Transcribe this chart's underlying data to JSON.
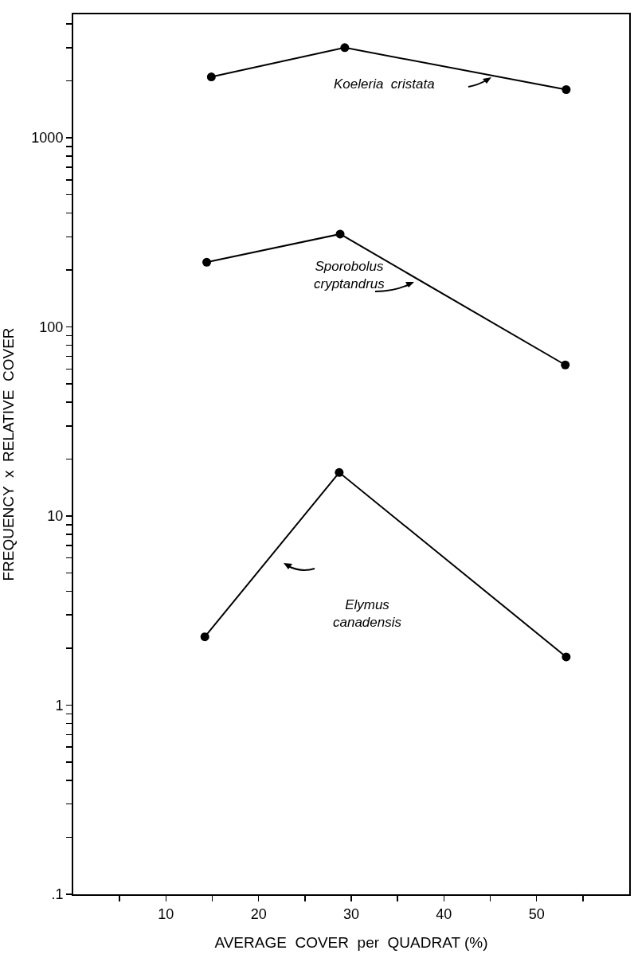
{
  "chart_data": {
    "type": "line",
    "xlabel": "AVERAGE  COVER  per  QUADRAT (%)",
    "ylabel": "FREQUENCY  x  RELATIVE  COVER",
    "log": "y",
    "grid": false,
    "marker": "circle",
    "line_style": "solid",
    "xlim": [
      0,
      60
    ],
    "xticks": [
      {
        "value": 5,
        "label": null
      },
      10,
      {
        "value": 15,
        "label": null
      },
      20,
      {
        "value": 25,
        "label": null
      },
      30,
      {
        "value": 35,
        "label": null
      },
      40,
      {
        "value": 45,
        "label": null
      },
      50,
      {
        "value": 55,
        "label": null
      }
    ],
    "ylim": [
      0.1,
      4500
    ],
    "yticks": [
      {
        "value": 0.1,
        "label": ".1"
      },
      {
        "value": 0.2,
        "label": null
      },
      {
        "value": 0.3,
        "label": null
      },
      {
        "value": 0.4,
        "label": null
      },
      {
        "value": 0.5,
        "label": null
      },
      {
        "value": 0.6,
        "label": null
      },
      {
        "value": 0.7,
        "label": null
      },
      {
        "value": 0.8,
        "label": null
      },
      {
        "value": 0.9,
        "label": null
      },
      1,
      {
        "value": 2,
        "label": null
      },
      {
        "value": 3,
        "label": null
      },
      {
        "value": 4,
        "label": null
      },
      {
        "value": 5,
        "label": null
      },
      {
        "value": 6,
        "label": null
      },
      {
        "value": 7,
        "label": null
      },
      {
        "value": 8,
        "label": null
      },
      {
        "value": 9,
        "label": null
      },
      10,
      {
        "value": 20,
        "label": null
      },
      {
        "value": 30,
        "label": null
      },
      {
        "value": 40,
        "label": null
      },
      {
        "value": 50,
        "label": null
      },
      {
        "value": 60,
        "label": null
      },
      {
        "value": 70,
        "label": null
      },
      {
        "value": 80,
        "label": null
      },
      {
        "value": 90,
        "label": null
      },
      100,
      {
        "value": 200,
        "label": null
      },
      {
        "value": 300,
        "label": null
      },
      {
        "value": 400,
        "label": null
      },
      {
        "value": 500,
        "label": null
      },
      {
        "value": 600,
        "label": null
      },
      {
        "value": 700,
        "label": null
      },
      {
        "value": 800,
        "label": null
      },
      {
        "value": 900,
        "label": null
      },
      1000,
      {
        "value": 2000,
        "label": null
      },
      {
        "value": 3000,
        "label": null
      },
      {
        "value": 4000,
        "label": null
      }
    ],
    "series": [
      {
        "color": "#000000",
        "x": [
          14.9,
          29.3,
          53.2
        ],
        "values": [
          2100,
          3000,
          1800
        ]
      },
      {
        "color": "#000000",
        "x": [
          14.4,
          28.8,
          53.1
        ],
        "values": [
          220,
          310,
          63
        ]
      },
      {
        "color": "#000000",
        "x": [
          14.2,
          28.7,
          53.2
        ],
        "values": [
          2.3,
          17,
          1.8
        ]
      }
    ],
    "annotations": [
      "Koeleria  cristata",
      "Sporobolus\ncryptandrus",
      "Elymus\ncanadensis"
    ]
  }
}
